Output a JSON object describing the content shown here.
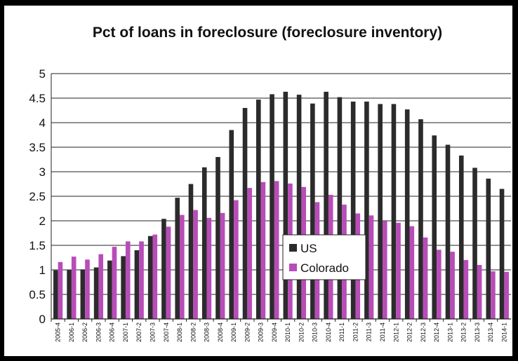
{
  "chart_data": {
    "type": "bar",
    "title": "Pct of loans in foreclosure (foreclosure inventory)",
    "xlabel": "",
    "ylabel": "",
    "ylim": [
      0,
      5
    ],
    "yticks": [
      "0",
      "0.5",
      "1",
      "1.5",
      "2",
      "2.5",
      "3",
      "3.5",
      "4",
      "4.5",
      "5"
    ],
    "grid": true,
    "legend_position": "center",
    "categories": [
      "2005-4",
      "2006-1",
      "2006-2",
      "2006-3",
      "2006-4",
      "2007-1",
      "2007-2",
      "2007-3",
      "2007-4",
      "2008-1",
      "2008-2",
      "2008-3",
      "2008-4",
      "2009-1",
      "2009-2",
      "2009-3",
      "2009-4",
      "2010-1",
      "2010-2",
      "2010-3",
      "2010-4",
      "2011-1",
      "2011-2",
      "2011-3",
      "2011-4",
      "2012-1",
      "2012-2",
      "2012-3",
      "2012-4",
      "2013-1",
      "2013-2",
      "2013-3",
      "2013-4",
      "2014-1"
    ],
    "series": [
      {
        "name": "US",
        "color": "#2b2b2b",
        "values": [
          0.99,
          1.0,
          1.01,
          1.05,
          1.19,
          1.28,
          1.4,
          1.69,
          2.04,
          2.47,
          2.75,
          3.09,
          3.3,
          3.85,
          4.3,
          4.47,
          4.58,
          4.63,
          4.57,
          4.39,
          4.63,
          4.52,
          4.43,
          4.43,
          4.38,
          4.38,
          4.27,
          4.07,
          3.74,
          3.55,
          3.33,
          3.08,
          2.86,
          2.65
        ]
      },
      {
        "name": "Colorado",
        "color": "#b84cb8",
        "values": [
          1.16,
          1.27,
          1.21,
          1.32,
          1.47,
          1.58,
          1.58,
          1.72,
          1.88,
          2.12,
          2.22,
          2.06,
          2.16,
          2.42,
          2.67,
          2.79,
          2.81,
          2.76,
          2.69,
          2.38,
          2.53,
          2.33,
          2.15,
          2.11,
          1.99,
          1.96,
          1.89,
          1.66,
          1.41,
          1.37,
          1.2,
          1.1,
          0.97,
          0.96
        ]
      }
    ]
  }
}
